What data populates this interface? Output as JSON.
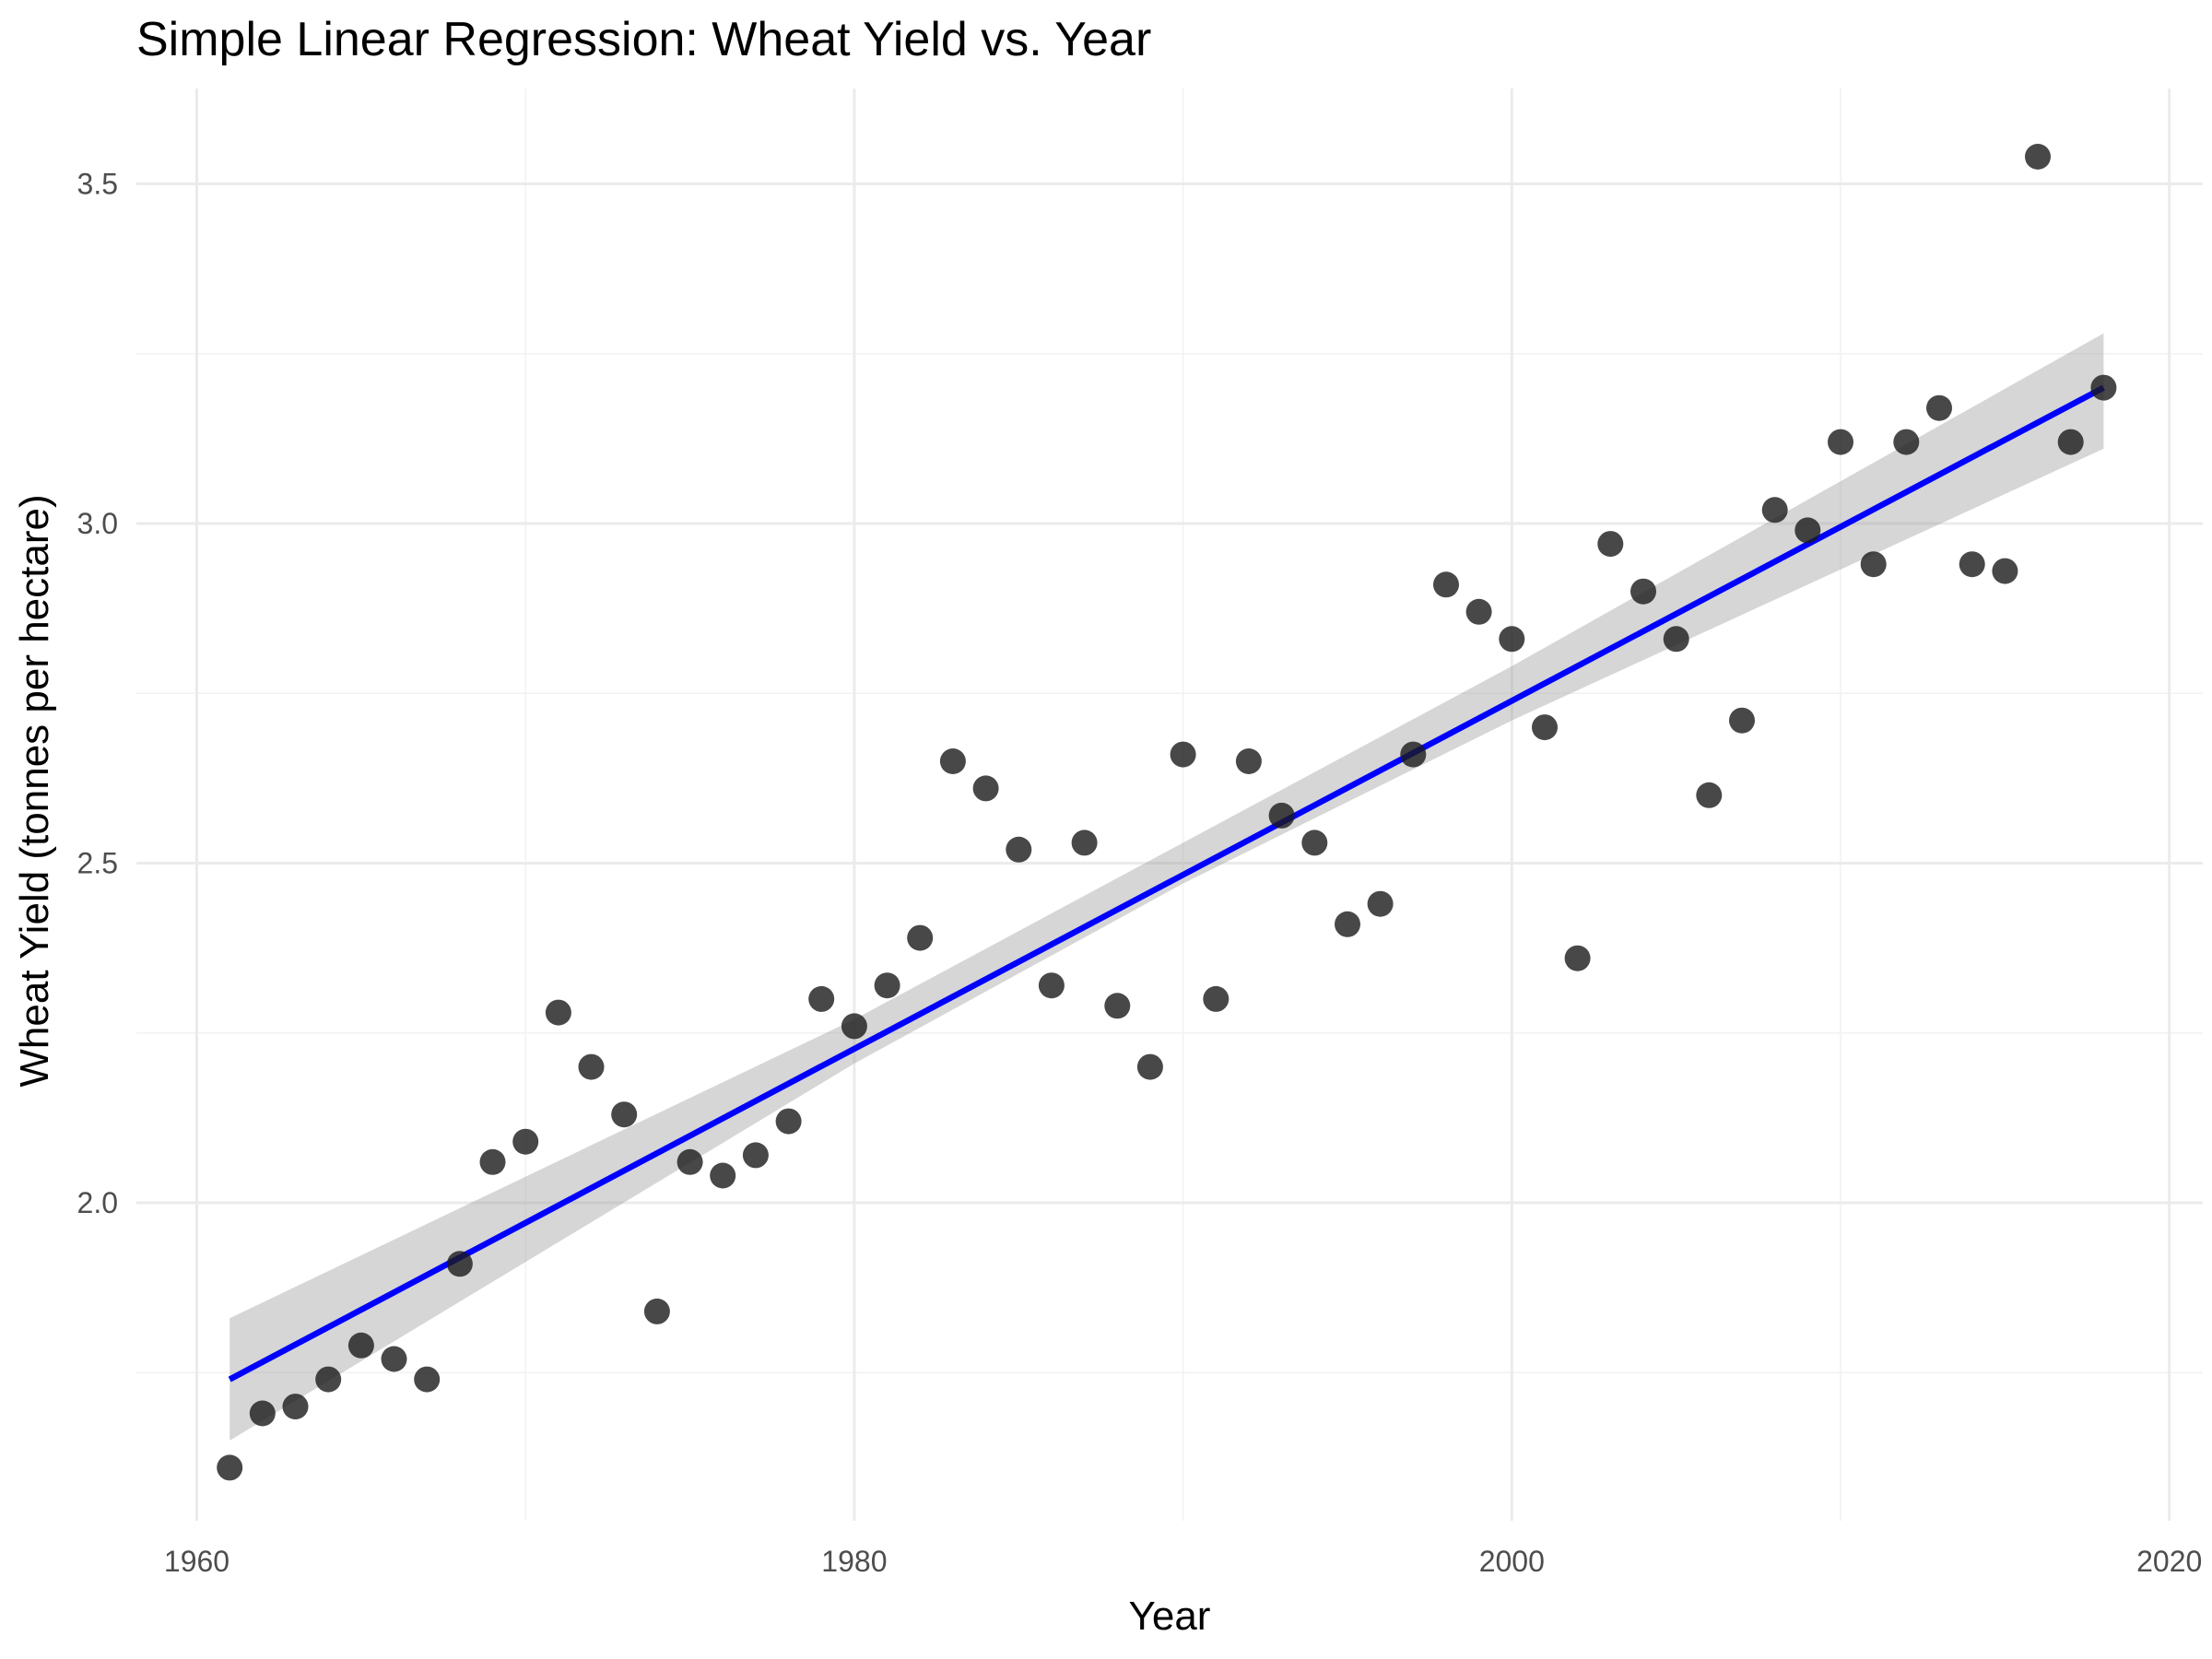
{
  "chart_data": {
    "type": "scatter",
    "title": "Simple Linear Regression: Wheat Yield vs. Year",
    "xlabel": "Year",
    "ylabel": "Wheat Yield (tonnes per hectare)",
    "xlim": [
      1961,
      2018
    ],
    "ylim": [
      1.6,
      3.55
    ],
    "x_ticks": [
      1960,
      1980,
      2000,
      2020
    ],
    "x_tick_labels": [
      "1960",
      "1980",
      "2000",
      "2020"
    ],
    "y_ticks": [
      2.0,
      2.5,
      3.0,
      3.5
    ],
    "y_tick_labels": [
      "2.0",
      "2.5",
      "3.0",
      "3.5"
    ],
    "grid": true,
    "colors": {
      "points": "#1a1a1a",
      "fit_line": "#0000ff",
      "confidence_band": "#999999"
    },
    "points": {
      "x": [
        1961,
        1962,
        1963,
        1964,
        1965,
        1966,
        1967,
        1968,
        1969,
        1970,
        1971,
        1972,
        1973,
        1974,
        1975,
        1976,
        1977,
        1978,
        1979,
        1980,
        1981,
        1982,
        1983,
        1984,
        1985,
        1986,
        1987,
        1988,
        1989,
        1990,
        1991,
        1992,
        1993,
        1994,
        1995,
        1996,
        1997,
        1998,
        1999,
        2000,
        2001,
        2002,
        2003,
        2004,
        2005,
        2006,
        2007,
        2008,
        2009,
        2010,
        2011,
        2012,
        2013,
        2014,
        2015,
        2016,
        2017,
        2018
      ],
      "y": [
        1.61,
        1.69,
        1.7,
        1.74,
        1.79,
        1.77,
        1.74,
        1.91,
        2.06,
        2.09,
        2.28,
        2.2,
        2.13,
        1.84,
        2.06,
        2.04,
        2.07,
        2.12,
        2.3,
        2.26,
        2.32,
        2.39,
        2.65,
        2.61,
        2.52,
        2.32,
        2.53,
        2.29,
        2.2,
        2.66,
        2.3,
        2.65,
        2.57,
        2.53,
        2.41,
        2.44,
        2.66,
        2.91,
        2.87,
        2.83,
        2.7,
        2.36,
        2.97,
        2.9,
        2.83,
        2.6,
        2.71,
        3.02,
        2.99,
        3.12,
        2.94,
        3.12,
        3.17,
        2.94,
        2.93,
        3.54,
        3.12,
        3.2
      ]
    },
    "fit_line": {
      "x": [
        1961,
        2018
      ],
      "y": [
        1.74,
        3.2
      ]
    },
    "confidence_band": {
      "x": [
        1961,
        1980,
        1990,
        2000,
        2018
      ],
      "lower": [
        1.65,
        2.205,
        2.47,
        2.71,
        3.11
      ],
      "upper": [
        1.83,
        2.27,
        2.53,
        2.79,
        3.28
      ]
    }
  }
}
